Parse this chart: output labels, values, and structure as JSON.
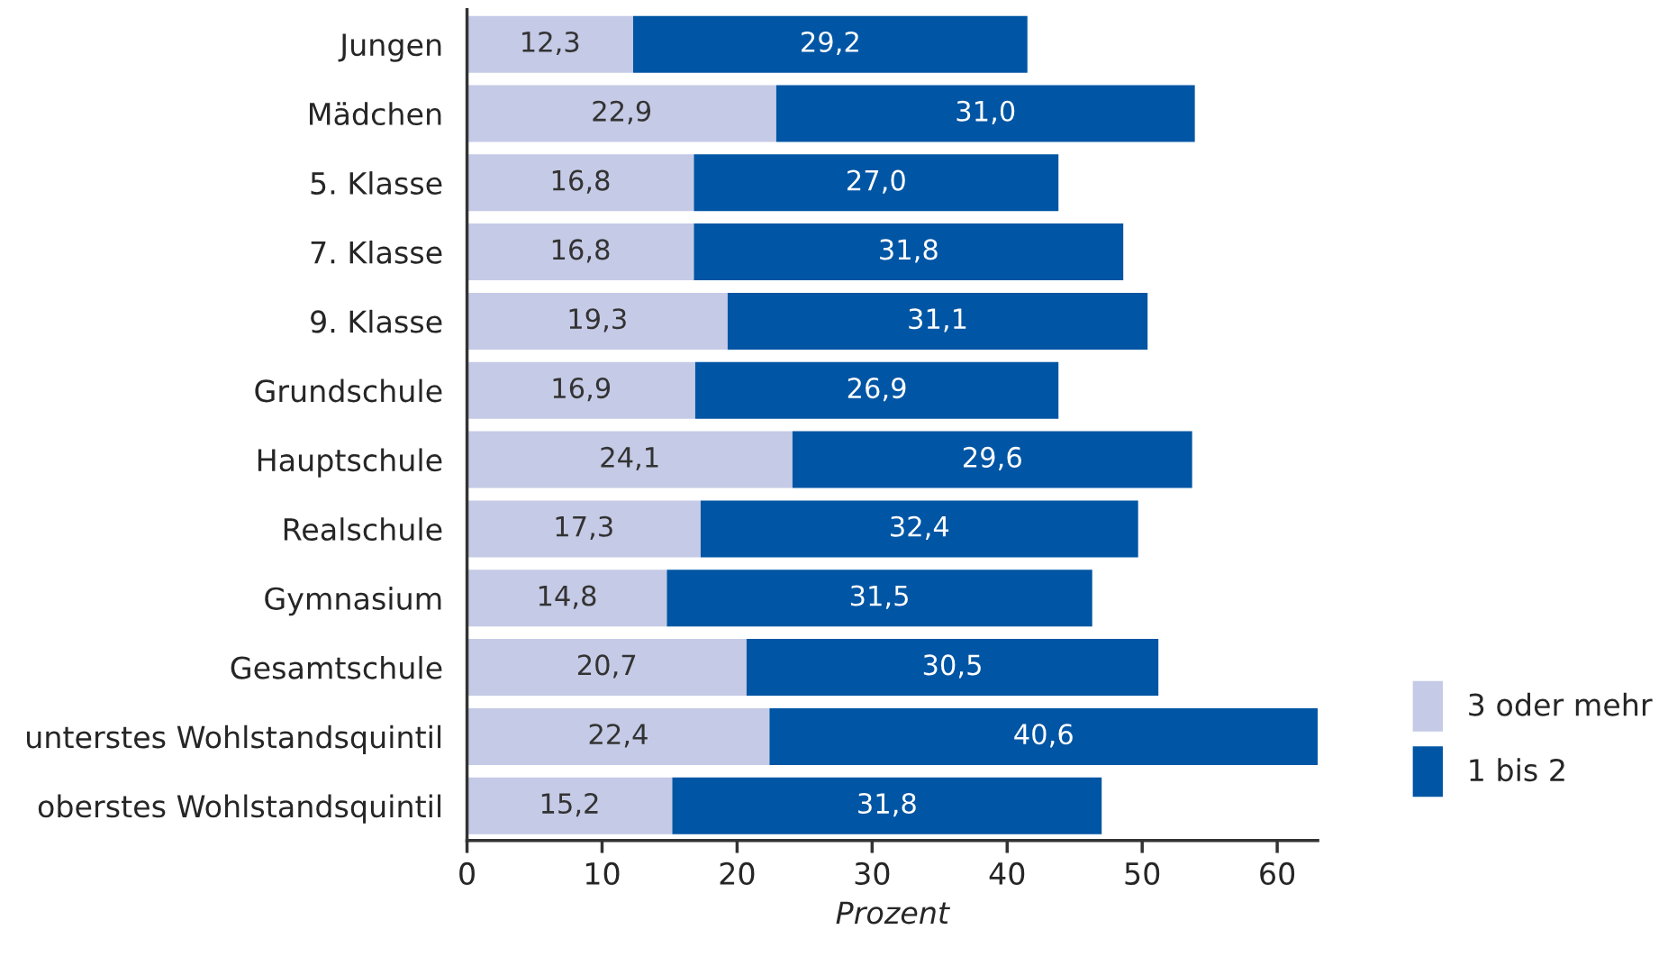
{
  "chart_data": {
    "type": "bar",
    "orientation": "horizontal",
    "stacked": true,
    "xlabel": "Prozent",
    "categories": [
      "Jungen",
      "Mädchen",
      "5. Klasse",
      "7. Klasse",
      "9. Klasse",
      "Grundschule",
      "Hauptschule",
      "Realschule",
      "Gymnasium",
      "Gesamtschule",
      "unterstes Wohlstandsquintil",
      "oberstes Wohlstandsquintil"
    ],
    "series": [
      {
        "name": "3 oder mehr",
        "color": "#c5cae6",
        "values": [
          12.3,
          22.9,
          16.8,
          16.8,
          19.3,
          16.9,
          24.1,
          17.3,
          14.8,
          20.7,
          22.4,
          15.2
        ],
        "value_labels": [
          "12,3",
          "22,9",
          "16,8",
          "16,8",
          "19,3",
          "16,9",
          "24,1",
          "17,3",
          "14,8",
          "20,7",
          "22,4",
          "15,2"
        ]
      },
      {
        "name": "1 bis 2",
        "color": "#0055a4",
        "values": [
          29.2,
          31.0,
          27.0,
          31.8,
          31.1,
          26.9,
          29.6,
          32.4,
          31.5,
          30.5,
          40.6,
          31.8
        ],
        "value_labels": [
          "29,2",
          "31,0",
          "27,0",
          "31,8",
          "31,1",
          "26,9",
          "29,6",
          "32,4",
          "31,5",
          "30,5",
          "40,6",
          "31,8"
        ]
      }
    ],
    "xlim": [
      0,
      63
    ],
    "xticks": [
      0,
      10,
      20,
      30,
      40,
      50,
      60
    ],
    "grid": false,
    "legend": "bottom right"
  }
}
